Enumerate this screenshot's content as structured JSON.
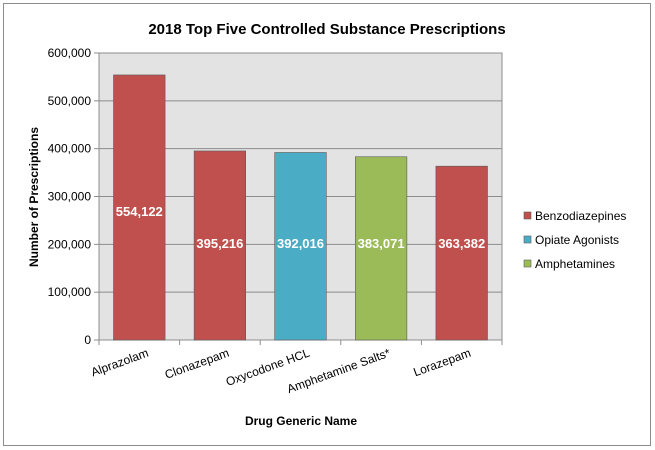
{
  "chart_data": {
    "type": "bar",
    "title": "2018 Top Five Controlled Substance Prescriptions",
    "xlabel": "Drug Generic Name",
    "ylabel": "Number of Prescriptions",
    "ylim": [
      0,
      600000
    ],
    "yticks": [
      0,
      100000,
      200000,
      300000,
      400000,
      500000,
      600000
    ],
    "ytick_labels": [
      "0",
      "100,000",
      "200,000",
      "300,000",
      "400,000",
      "500,000",
      "600,000"
    ],
    "grid": true,
    "legend_position": "right",
    "categories": [
      "Alprazolam",
      "Clonazepam",
      "Oxycodone HCL",
      "Amphetamine Salts*",
      "Lorazepam"
    ],
    "values": [
      554122,
      395216,
      392016,
      383071,
      363382
    ],
    "value_labels": [
      "554,122",
      "395,216",
      "392,016",
      "383,071",
      "363,382"
    ],
    "bar_groups": [
      "Benzodiazepines",
      "Benzodiazepines",
      "Opiate Agonists",
      "Amphetamines",
      "Benzodiazepines"
    ],
    "legend": [
      {
        "name": "Benzodiazepines",
        "color": "#c0504d"
      },
      {
        "name": "Opiate Agonists",
        "color": "#4bacc6"
      },
      {
        "name": "Amphetamines",
        "color": "#9bbb59"
      }
    ]
  }
}
